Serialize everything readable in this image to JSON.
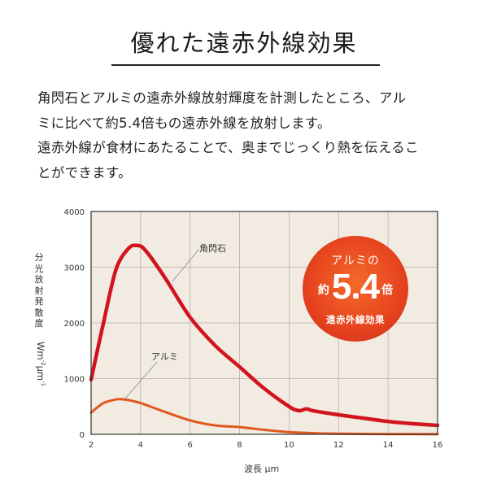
{
  "title": "優れた遠赤外線効果",
  "description": {
    "lines": [
      "角閃石とアルミの遠赤外線放射輝度を計測したところ、アル",
      "ミに比べて約5.4倍もの遠赤外線を放射します。",
      "遠赤外線が食材にあたることで、奥までじっくり熱を伝えるこ",
      "とができます。"
    ]
  },
  "badge": {
    "top": "アルミの",
    "prefix": "約",
    "number": "5.4",
    "suffix": "倍",
    "bottom": "遠赤外線効果"
  },
  "colors": {
    "plot_bg": "#f2ebe1",
    "grid": "#b8b0a6",
    "hornblende": "#d2141e",
    "aluminum": "#e0581e",
    "badge": "#e8461f"
  },
  "chart_data": {
    "type": "line",
    "title": "",
    "xlabel": "波長 μm",
    "ylabel": "分光放射発散度 Wm⁻²μm⁻¹",
    "ylabel_text": "分光放射発散度",
    "ylabel_unit": "Wm⁻²μm⁻¹",
    "xlim": [
      2,
      16
    ],
    "ylim": [
      0,
      4000
    ],
    "xticks": [
      2,
      4,
      6,
      8,
      10,
      12,
      14,
      16
    ],
    "yticks": [
      0,
      1000,
      2000,
      3000,
      4000
    ],
    "grid": true,
    "legend_position": "inline labels",
    "annotations": [
      "角閃石",
      "アルミ",
      "アルミの約5.4倍 遠赤外線効果"
    ],
    "series": [
      {
        "name": "角閃石",
        "x": [
          2,
          2.5,
          3,
          3.5,
          3.85,
          4.2,
          5,
          6,
          7,
          8,
          9,
          10,
          10.4,
          10.7,
          11,
          12,
          13,
          14,
          15,
          16
        ],
        "values": [
          980,
          2000,
          2950,
          3330,
          3390,
          3300,
          2800,
          2100,
          1600,
          1210,
          820,
          500,
          425,
          455,
          420,
          350,
          290,
          230,
          190,
          160
        ]
      },
      {
        "name": "アルミ",
        "x": [
          2,
          2.5,
          3,
          3.2,
          3.5,
          4,
          5,
          6,
          7,
          8,
          9,
          10,
          11,
          12,
          14,
          16
        ],
        "values": [
          390,
          560,
          625,
          630,
          615,
          560,
          400,
          250,
          160,
          130,
          80,
          40,
          20,
          10,
          5,
          2
        ]
      }
    ]
  }
}
